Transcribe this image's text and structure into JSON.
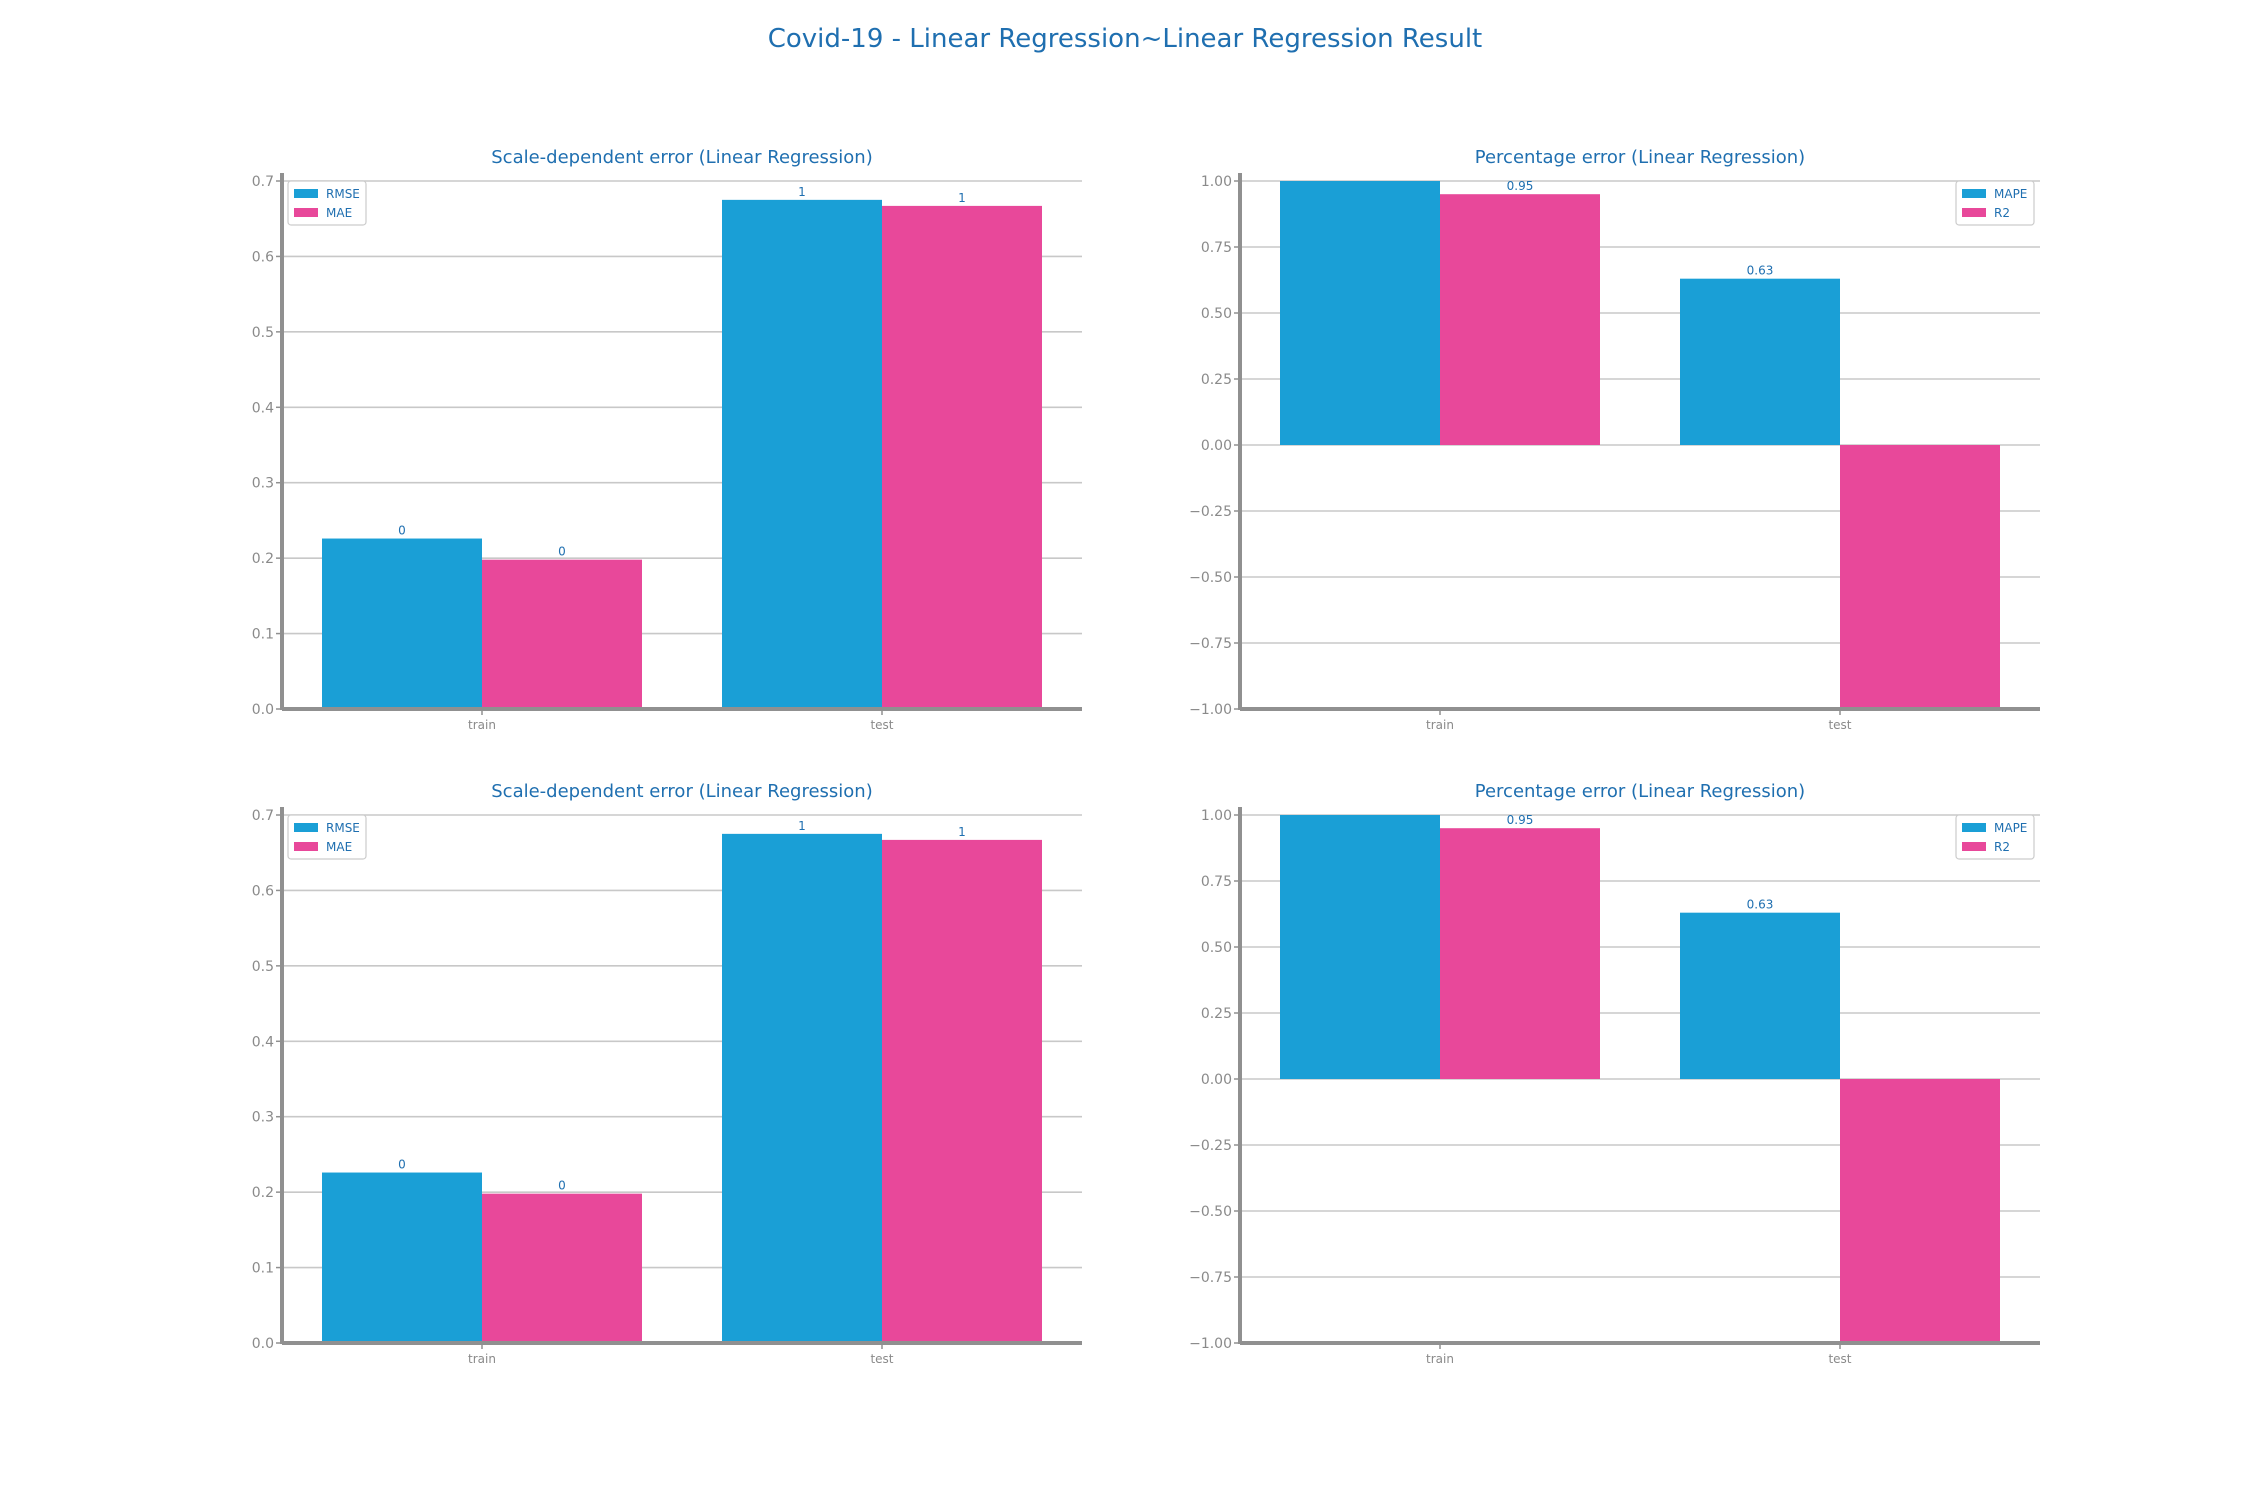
{
  "figure": {
    "title": "Covid-19 - Linear Regression~Linear Regression Result"
  },
  "colors": {
    "series_1": "#1a9fd6",
    "series_2": "#e8489a",
    "title": "#1f6fb0",
    "tick": "#8a8a8a",
    "grid": "#c8c8c8",
    "spine": "#909090"
  },
  "chart_data": [
    {
      "id": "scale-top",
      "type": "bar",
      "title": "Scale-dependent error (Linear Regression)",
      "categories": [
        "train",
        "test"
      ],
      "series": [
        {
          "name": "RMSE",
          "values": [
            0.226,
            0.675
          ],
          "labels": [
            "0",
            "1"
          ]
        },
        {
          "name": "MAE",
          "values": [
            0.198,
            0.667
          ],
          "labels": [
            "0",
            "1"
          ]
        }
      ],
      "ylim": [
        0,
        0.7
      ],
      "yticks": [
        0.0,
        0.1,
        0.2,
        0.3,
        0.4,
        0.5,
        0.6,
        0.7
      ],
      "ytick_labels": [
        "0.0",
        "0.1",
        "0.2",
        "0.3",
        "0.4",
        "0.5",
        "0.6",
        "0.7"
      ],
      "grid": true,
      "legend": "top-left"
    },
    {
      "id": "pct-top",
      "type": "bar",
      "title": "Percentage error (Linear Regression)",
      "categories": [
        "train",
        "test"
      ],
      "series": [
        {
          "name": "MAPE",
          "values": [
            1.0,
            0.63
          ],
          "labels": [
            "",
            "0.63"
          ]
        },
        {
          "name": "R2",
          "values": [
            0.95,
            -1.0
          ],
          "labels": [
            "0.95",
            ""
          ]
        }
      ],
      "ylim": [
        -1,
        1
      ],
      "yticks": [
        -1.0,
        -0.75,
        -0.5,
        -0.25,
        0.0,
        0.25,
        0.5,
        0.75,
        1.0
      ],
      "ytick_labels": [
        "−1.00",
        "−0.75",
        "−0.50",
        "−0.25",
        "0.00",
        "0.25",
        "0.50",
        "0.75",
        "1.00"
      ],
      "grid": true,
      "legend": "top-right"
    },
    {
      "id": "scale-bottom",
      "type": "bar",
      "title": "Scale-dependent error (Linear Regression)",
      "categories": [
        "train",
        "test"
      ],
      "series": [
        {
          "name": "RMSE",
          "values": [
            0.226,
            0.675
          ],
          "labels": [
            "0",
            "1"
          ]
        },
        {
          "name": "MAE",
          "values": [
            0.198,
            0.667
          ],
          "labels": [
            "0",
            "1"
          ]
        }
      ],
      "ylim": [
        0,
        0.7
      ],
      "yticks": [
        0.0,
        0.1,
        0.2,
        0.3,
        0.4,
        0.5,
        0.6,
        0.7
      ],
      "ytick_labels": [
        "0.0",
        "0.1",
        "0.2",
        "0.3",
        "0.4",
        "0.5",
        "0.6",
        "0.7"
      ],
      "grid": true,
      "legend": "top-left"
    },
    {
      "id": "pct-bottom",
      "type": "bar",
      "title": "Percentage error (Linear Regression)",
      "categories": [
        "train",
        "test"
      ],
      "series": [
        {
          "name": "MAPE",
          "values": [
            1.0,
            0.63
          ],
          "labels": [
            "",
            "0.63"
          ]
        },
        {
          "name": "R2",
          "values": [
            0.95,
            -1.0
          ],
          "labels": [
            "0.95",
            ""
          ]
        }
      ],
      "ylim": [
        -1,
        1
      ],
      "yticks": [
        -1.0,
        -0.75,
        -0.5,
        -0.25,
        0.0,
        0.25,
        0.5,
        0.75,
        1.0
      ],
      "ytick_labels": [
        "−1.00",
        "−0.75",
        "−0.50",
        "−0.25",
        "0.00",
        "0.25",
        "0.50",
        "0.75",
        "1.00"
      ],
      "grid": true,
      "legend": "top-right"
    }
  ]
}
